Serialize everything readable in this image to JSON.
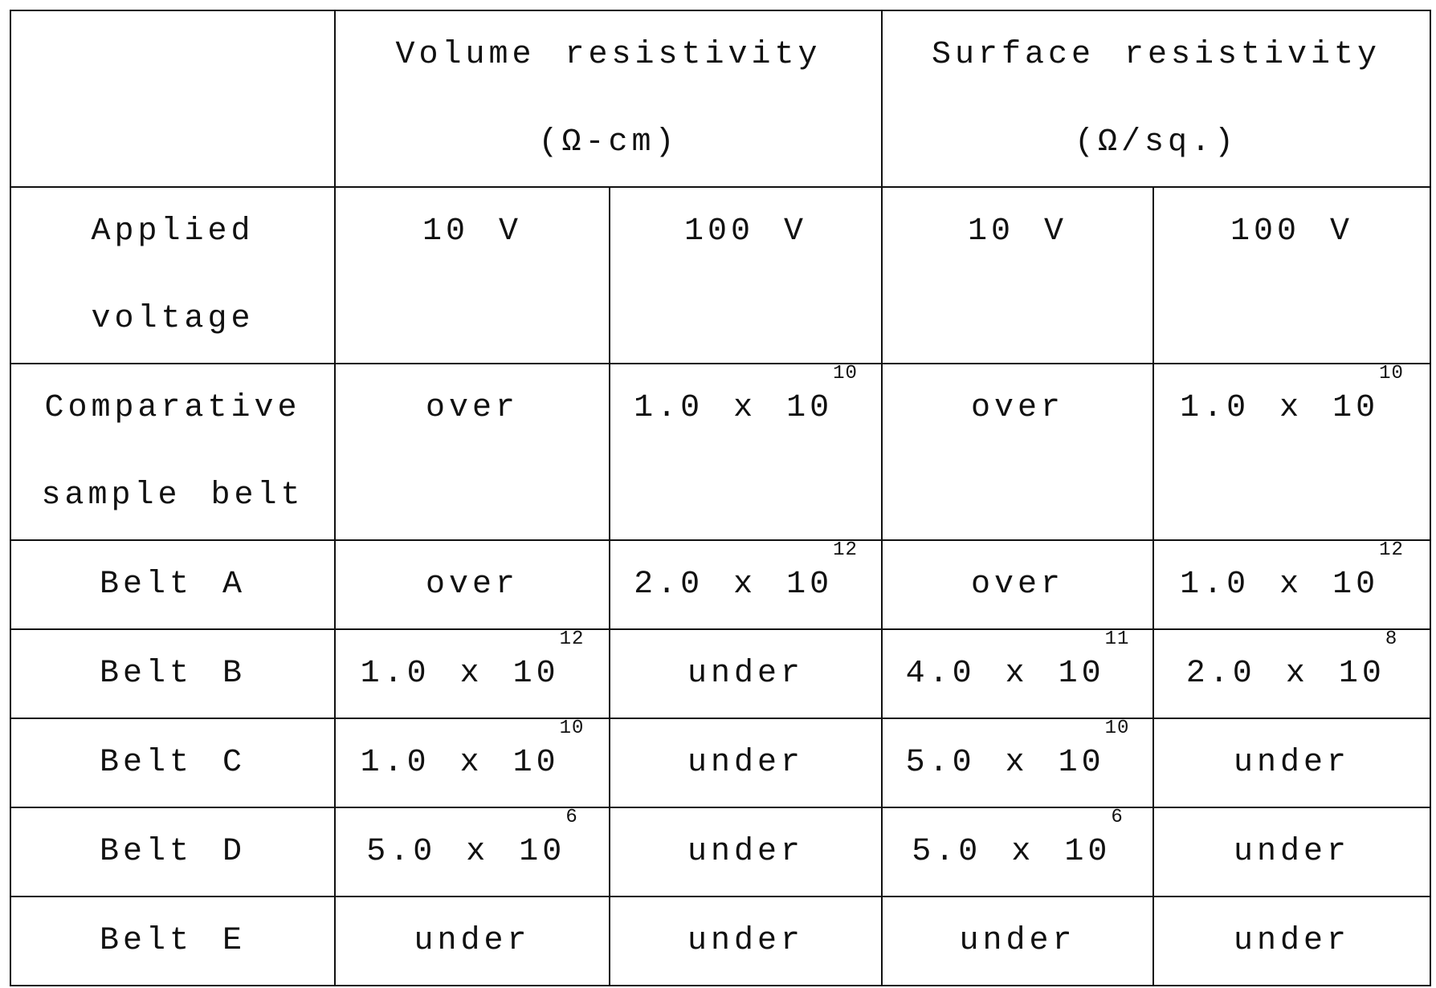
{
  "header": {
    "corner": "",
    "volume": {
      "line1": "Volume resistivity",
      "line2": "(Ω-cm)"
    },
    "surface": {
      "line1": "Surface resistivity",
      "line2": "(Ω/sq.)"
    }
  },
  "voltage_row": {
    "label_line1": "Applied",
    "label_line2": "voltage",
    "cells": [
      "10 V",
      "100 V",
      "10 V",
      "100 V"
    ]
  },
  "comparative_row": {
    "label_line1": "Comparative",
    "label_line2": "sample belt",
    "cells": [
      {
        "text": "over"
      },
      {
        "mantissa": "1.0 x 10",
        "exponent": "10"
      },
      {
        "text": "over"
      },
      {
        "mantissa": "1.0 x 10",
        "exponent": "10"
      }
    ]
  },
  "rows": [
    {
      "label": "Belt A",
      "cells": [
        {
          "text": "over"
        },
        {
          "mantissa": "2.0 x 10",
          "exponent": "12"
        },
        {
          "text": "over"
        },
        {
          "mantissa": "1.0 x 10",
          "exponent": "12"
        }
      ]
    },
    {
      "label": "Belt B",
      "cells": [
        {
          "mantissa": "1.0 x 10",
          "exponent": "12"
        },
        {
          "text": "under"
        },
        {
          "mantissa": "4.0 x 10",
          "exponent": "11"
        },
        {
          "mantissa": "2.0 x 10",
          "exponent": "8"
        }
      ]
    },
    {
      "label": "Belt C",
      "cells": [
        {
          "mantissa": "1.0 x 10",
          "exponent": "10"
        },
        {
          "text": "under"
        },
        {
          "mantissa": "5.0 x 10",
          "exponent": "10"
        },
        {
          "text": "under"
        }
      ]
    },
    {
      "label": "Belt D",
      "cells": [
        {
          "mantissa": "5.0 x 10",
          "exponent": "6"
        },
        {
          "text": "under"
        },
        {
          "mantissa": "5.0 x 10",
          "exponent": "6"
        },
        {
          "text": "under"
        }
      ]
    },
    {
      "label": "Belt E",
      "cells": [
        {
          "text": "under"
        },
        {
          "text": "under"
        },
        {
          "text": "under"
        },
        {
          "text": "under"
        }
      ]
    }
  ]
}
